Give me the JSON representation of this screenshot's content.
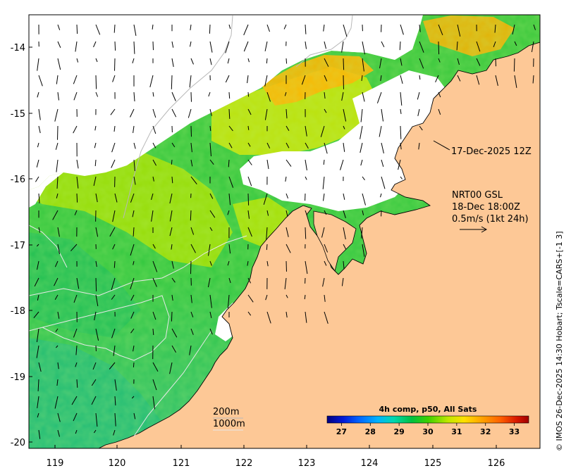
{
  "map": {
    "lon_ticks": [
      "119",
      "120",
      "121",
      "122",
      "123",
      "124",
      "125",
      "126"
    ],
    "lat_ticks": [
      "-14",
      "-15",
      "-16",
      "-17",
      "-18",
      "-19",
      "-20"
    ],
    "lon_range": [
      118.6,
      126.7
    ],
    "lat_range": [
      -20.2,
      -13.55
    ],
    "land_color": "#fdc896",
    "cloud_color": "#ffffff",
    "coast_color": "#000000"
  },
  "annotations": {
    "coastline_date": "17-Dec-2025 12Z",
    "current_source": "NRT00 GSL",
    "current_time": "18-Dec 18:00Z",
    "scale_label": "0.5m/s (1kt 24h)"
  },
  "depth_legend": {
    "contour1": "200m",
    "contour2": "1000m"
  },
  "colorbar": {
    "title": "4h comp, p50, All Sats",
    "labels": [
      "27",
      "28",
      "29",
      "30",
      "31",
      "32",
      "33"
    ],
    "range": [
      26.5,
      33.5
    ],
    "colors": [
      "#00007f",
      "#0019d8",
      "#0066ff",
      "#00b2ff",
      "#00e0a0",
      "#00c040",
      "#3cd000",
      "#a0e000",
      "#e8f000",
      "#ffd000",
      "#ff9c00",
      "#ff6000",
      "#e82000",
      "#a00000"
    ]
  },
  "credit": "© IMOS 26-Dec-2025 14:30 Hobart; Tscale=CARS+[-1 3]"
}
